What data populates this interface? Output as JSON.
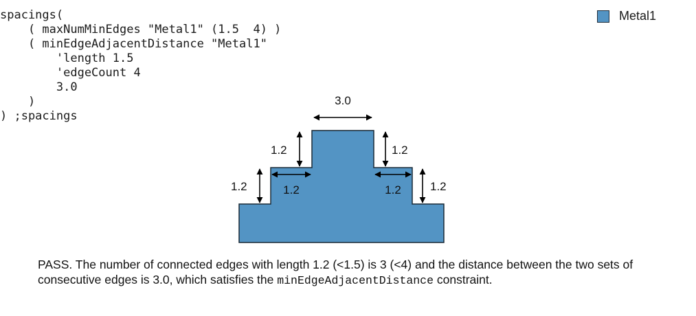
{
  "code": {
    "lines": [
      "spacings(",
      "    ( maxNumMinEdges \"Metal1\" (1.5  4) )",
      "    ( minEdgeAdjacentDistance \"Metal1\"",
      "        'length 1.5",
      "        'edgeCount 4",
      "        3.0",
      "    )",
      ") ;spacings"
    ]
  },
  "legend": {
    "label": "Metal1",
    "color": "#5394c4"
  },
  "diagram": {
    "fill_color": "#5394c4",
    "top_width_label": "3.0",
    "left_upper_step_label": "1.2",
    "right_upper_step_label": "1.2",
    "left_lower_step_label": "1.2",
    "right_lower_step_label": "1.2",
    "left_ledge_label": "1.2",
    "right_ledge_label": "1.2"
  },
  "caption": {
    "text_before": "PASS. The number of connected edges with length 1.2 (<1.5) is 3 (<4) and the distance between the two sets of consecutive edges is 3.0, which satisfies the ",
    "code_term": "minEdgeAdjacentDistance",
    "text_after": " constraint."
  }
}
